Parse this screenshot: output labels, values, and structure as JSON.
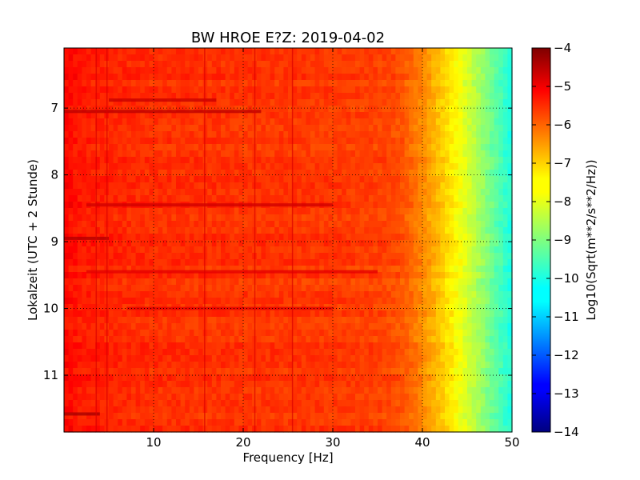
{
  "chart_data": {
    "type": "heatmap",
    "title": "BW HROE E?Z: 2019-04-02",
    "xlabel": "Frequency [Hz]",
    "ylabel": "Lokalzeit (UTC + 2 Stunde)",
    "xlim": [
      0,
      50
    ],
    "ylim": [
      6.1,
      11.85
    ],
    "y_inverted": true,
    "x_ticks": [
      10,
      20,
      30,
      40,
      50
    ],
    "y_ticks": [
      7,
      8,
      9,
      10,
      11
    ],
    "grid": true,
    "colormap": "jet",
    "colorbar": {
      "label": "Log10(Sqrt(m**2/s**2/Hz))",
      "range": [
        -14,
        -4
      ],
      "ticks": [
        -4,
        -5,
        -6,
        -7,
        -8,
        -9,
        -10,
        -11,
        -12,
        -13,
        -14
      ]
    },
    "level_by_frequency": {
      "x": [
        0,
        2,
        5,
        10,
        20,
        30,
        36,
        38,
        40,
        42,
        43,
        44,
        46,
        48,
        50
      ],
      "log10_amplitude": [
        -5.3,
        -5.5,
        -5.6,
        -5.7,
        -5.75,
        -5.8,
        -5.9,
        -6.1,
        -6.6,
        -7.2,
        -7.5,
        -7.8,
        -8.5,
        -9.3,
        -10.0
      ]
    },
    "vertical_lines_hz": [
      3.6,
      4.8,
      15.7,
      21.3,
      25.5
    ],
    "horizontal_events": [
      {
        "time": 6.88,
        "x_start": 5,
        "x_end": 17,
        "log10_amplitude": -4.7
      },
      {
        "time": 7.05,
        "x_start": 0,
        "x_end": 22,
        "log10_amplitude": -4.6
      },
      {
        "time": 8.45,
        "x_start": 2.5,
        "x_end": 30,
        "log10_amplitude": -4.8
      },
      {
        "time": 8.95,
        "x_start": 0,
        "x_end": 5,
        "log10_amplitude": -4.5
      },
      {
        "time": 9.45,
        "x_start": 2.5,
        "x_end": 35,
        "log10_amplitude": -5.0
      },
      {
        "time": 10.0,
        "x_start": 7,
        "x_end": 30,
        "log10_amplitude": -5.0
      },
      {
        "time": 11.58,
        "x_start": 0,
        "x_end": 4,
        "log10_amplitude": -4.4
      }
    ]
  }
}
